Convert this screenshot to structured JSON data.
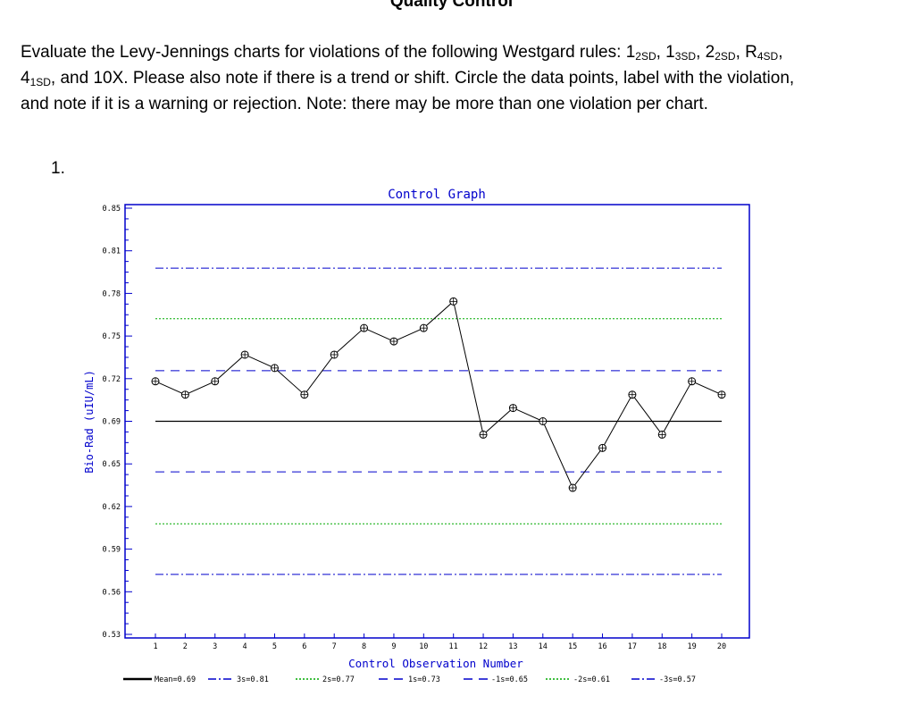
{
  "document": {
    "title": "Quality Control",
    "instructions": {
      "lead": "Evaluate the Levy-Jennings charts for violations of the following Westgard rules: ",
      "rules": [
        {
          "main": "1",
          "sub": "2SD"
        },
        {
          "main": "1",
          "sub": "3SD"
        },
        {
          "main": "2",
          "sub": "2SD"
        },
        {
          "main": "R",
          "sub": "4SD"
        },
        {
          "main": "4",
          "sub": "1SD"
        }
      ],
      "sep": ", ",
      "conj": ", and ",
      "last_rule": "10X",
      "tail": ". Please also note if there is a trend or shift. Circle the data points, label with the violation, and note if it is a warning or rejection. Note: there may be more than one violation per chart."
    },
    "question_number": "1."
  },
  "chart_data": {
    "type": "line",
    "title": "Control Graph",
    "xlabel": "Control Observation Number",
    "ylabel": "Bio-Rad (uIU/mL)",
    "x": [
      1,
      2,
      3,
      4,
      5,
      6,
      7,
      8,
      9,
      10,
      11,
      12,
      13,
      14,
      15,
      16,
      17,
      18,
      19,
      20
    ],
    "y_ticks": [
      "0.85",
      "0.81",
      "0.78",
      "0.75",
      "0.72",
      "0.69",
      "0.65",
      "0.62",
      "0.59",
      "0.56",
      "0.53"
    ],
    "ylim": [
      0.53,
      0.85
    ],
    "grid": false,
    "series": [
      {
        "values": [
          0.72,
          0.71,
          0.72,
          0.74,
          0.73,
          0.71,
          0.74,
          0.76,
          0.75,
          0.76,
          0.78,
          0.68,
          0.7,
          0.69,
          0.64,
          0.67,
          0.71,
          0.68,
          0.72,
          0.71
        ]
      }
    ],
    "reference_lines": [
      {
        "label": "Mean=0.69",
        "value": 0.69,
        "style": "solid",
        "color": "#000000"
      },
      {
        "label": "3s=0.81",
        "value": 0.805,
        "style": "dashdot",
        "color": "#0000cc"
      },
      {
        "label": "2s=0.77",
        "value": 0.767,
        "style": "dotted",
        "color": "#00aa00"
      },
      {
        "label": "1s=0.73",
        "value": 0.728,
        "style": "dashed",
        "color": "#0000cc"
      },
      {
        "label": "-1s=0.65",
        "value": 0.652,
        "style": "dashed",
        "color": "#0000cc"
      },
      {
        "label": "-2s=0.61",
        "value": 0.613,
        "style": "dotted",
        "color": "#00aa00"
      },
      {
        "label": "-3s=0.57",
        "value": 0.575,
        "style": "dashdot",
        "color": "#0000cc"
      }
    ],
    "legend_position": "bottom",
    "colors": {
      "axis": "#0000cc",
      "line": "#000000"
    }
  }
}
